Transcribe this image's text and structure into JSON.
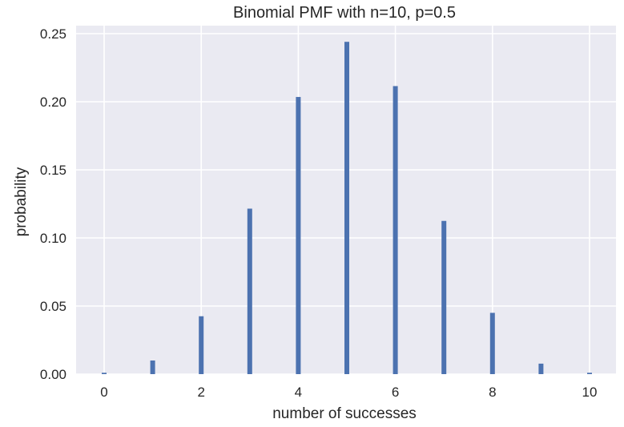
{
  "chart_data": {
    "type": "bar",
    "title": "Binomial PMF with n=10, p=0.5",
    "xlabel": "number of successes",
    "ylabel": "probability",
    "x": [
      0,
      1,
      2,
      3,
      4,
      5,
      6,
      7,
      8,
      9,
      10
    ],
    "values": [
      0.001,
      0.01,
      0.0425,
      0.1215,
      0.2035,
      0.244,
      0.2115,
      0.1125,
      0.045,
      0.0077,
      0.001
    ],
    "xlim": [
      -0.55,
      10.55
    ],
    "ylim": [
      0,
      0.256
    ],
    "xticks": [
      0,
      2,
      4,
      6,
      8,
      10
    ],
    "xtick_labels": [
      "0",
      "2",
      "4",
      "6",
      "8",
      "10"
    ],
    "yticks": [
      0,
      0.05,
      0.1,
      0.15,
      0.2,
      0.25
    ],
    "ytick_labels": [
      "0.00",
      "0.05",
      "0.10",
      "0.15",
      "0.20",
      "0.25"
    ],
    "grid": true,
    "bar_color": "#4c72b0",
    "background_color": "#eaeaf2"
  }
}
